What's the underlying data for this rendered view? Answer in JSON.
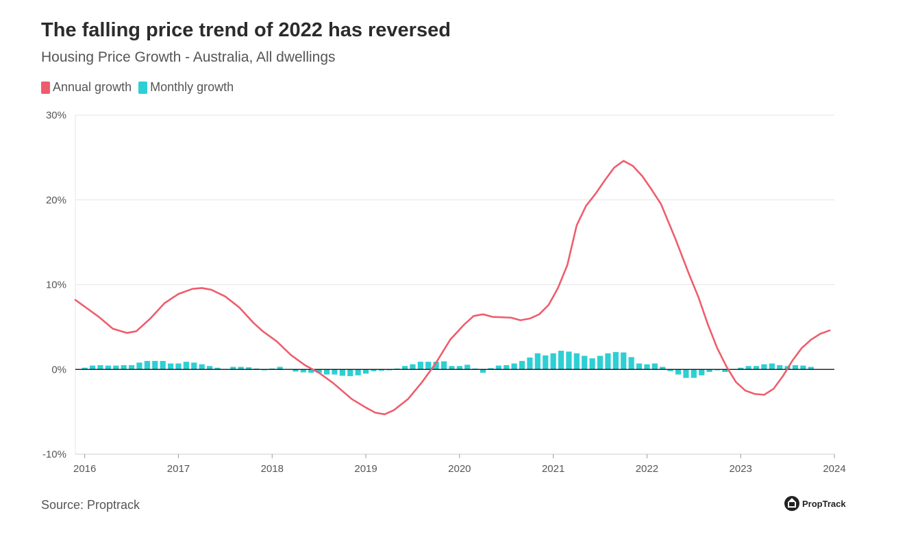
{
  "header": {
    "title": "The falling price trend of 2022 has reversed",
    "subtitle": "Housing Price Growth - Australia, All dwellings"
  },
  "footer": {
    "source": "Source: Proptrack",
    "brand": "PropTrack"
  },
  "colors": {
    "annual": "#ee5d6c",
    "monthly": "#2ecfd4",
    "grid": "#e6e6e6",
    "zero_line": "#000000"
  },
  "chart_data": {
    "type": "line",
    "legend_position": "top-left",
    "grid": true,
    "ylim": [
      -10,
      30
    ],
    "xlim": [
      2015.9,
      2024.0
    ],
    "y_ticks": [
      {
        "value": 30,
        "label": "30%"
      },
      {
        "value": 20,
        "label": "20%"
      },
      {
        "value": 10,
        "label": "10%"
      },
      {
        "value": 0,
        "label": "0%"
      },
      {
        "value": -10,
        "label": "-10%"
      }
    ],
    "x_ticks": [
      {
        "value": 2016,
        "label": "2016"
      },
      {
        "value": 2017,
        "label": "2017"
      },
      {
        "value": 2018,
        "label": "2018"
      },
      {
        "value": 2019,
        "label": "2019"
      },
      {
        "value": 2020,
        "label": "2020"
      },
      {
        "value": 2021,
        "label": "2021"
      },
      {
        "value": 2022,
        "label": "2022"
      },
      {
        "value": 2023,
        "label": "2023"
      },
      {
        "value": 2024,
        "label": "2024"
      }
    ],
    "series": [
      {
        "name": "Annual growth",
        "kind": "line",
        "points": [
          [
            2015.9,
            8.2
          ],
          [
            2016.0,
            7.4
          ],
          [
            2016.15,
            6.2
          ],
          [
            2016.3,
            4.8
          ],
          [
            2016.45,
            4.3
          ],
          [
            2016.55,
            4.5
          ],
          [
            2016.7,
            6.0
          ],
          [
            2016.85,
            7.8
          ],
          [
            2017.0,
            8.9
          ],
          [
            2017.15,
            9.5
          ],
          [
            2017.25,
            9.6
          ],
          [
            2017.35,
            9.4
          ],
          [
            2017.5,
            8.6
          ],
          [
            2017.65,
            7.3
          ],
          [
            2017.8,
            5.5
          ],
          [
            2017.9,
            4.5
          ],
          [
            2018.05,
            3.3
          ],
          [
            2018.2,
            1.7
          ],
          [
            2018.35,
            0.5
          ],
          [
            2018.5,
            -0.4
          ],
          [
            2018.65,
            -1.6
          ],
          [
            2018.85,
            -3.5
          ],
          [
            2019.0,
            -4.5
          ],
          [
            2019.1,
            -5.1
          ],
          [
            2019.2,
            -5.3
          ],
          [
            2019.3,
            -4.8
          ],
          [
            2019.45,
            -3.5
          ],
          [
            2019.6,
            -1.5
          ],
          [
            2019.75,
            0.8
          ],
          [
            2019.9,
            3.5
          ],
          [
            2020.05,
            5.3
          ],
          [
            2020.15,
            6.3
          ],
          [
            2020.25,
            6.5
          ],
          [
            2020.35,
            6.2
          ],
          [
            2020.55,
            6.1
          ],
          [
            2020.65,
            5.8
          ],
          [
            2020.75,
            6.0
          ],
          [
            2020.85,
            6.5
          ],
          [
            2020.95,
            7.6
          ],
          [
            2021.05,
            9.6
          ],
          [
            2021.15,
            12.3
          ],
          [
            2021.25,
            17.0
          ],
          [
            2021.35,
            19.3
          ],
          [
            2021.45,
            20.7
          ],
          [
            2021.55,
            22.3
          ],
          [
            2021.65,
            23.8
          ],
          [
            2021.75,
            24.6
          ],
          [
            2021.85,
            24.0
          ],
          [
            2021.95,
            22.8
          ],
          [
            2022.05,
            21.2
          ],
          [
            2022.15,
            19.5
          ],
          [
            2022.3,
            15.5
          ],
          [
            2022.45,
            11.2
          ],
          [
            2022.55,
            8.5
          ],
          [
            2022.65,
            5.3
          ],
          [
            2022.75,
            2.5
          ],
          [
            2022.85,
            0.3
          ],
          [
            2022.95,
            -1.5
          ],
          [
            2023.05,
            -2.5
          ],
          [
            2023.15,
            -2.9
          ],
          [
            2023.25,
            -3.0
          ],
          [
            2023.35,
            -2.3
          ],
          [
            2023.45,
            -0.8
          ],
          [
            2023.55,
            1.0
          ],
          [
            2023.65,
            2.5
          ],
          [
            2023.75,
            3.5
          ],
          [
            2023.85,
            4.2
          ],
          [
            2023.95,
            4.6
          ]
        ]
      },
      {
        "name": "Monthly growth",
        "kind": "bar",
        "x_start": 2016.0,
        "step": 0.0833333,
        "values": [
          0.2,
          0.45,
          0.5,
          0.45,
          0.45,
          0.5,
          0.5,
          0.8,
          1.0,
          1.0,
          1.0,
          0.7,
          0.7,
          0.9,
          0.8,
          0.6,
          0.4,
          0.2,
          0.05,
          0.3,
          0.3,
          0.25,
          0.1,
          -0.1,
          0.1,
          0.3,
          0.05,
          -0.25,
          -0.35,
          -0.4,
          -0.4,
          -0.6,
          -0.6,
          -0.75,
          -0.8,
          -0.7,
          -0.5,
          -0.2,
          -0.15,
          -0.1,
          0.1,
          0.4,
          0.6,
          0.9,
          0.9,
          0.9,
          0.95,
          0.4,
          0.4,
          0.55,
          0.1,
          -0.4,
          0.15,
          0.45,
          0.5,
          0.7,
          1.0,
          1.4,
          1.9,
          1.65,
          1.9,
          2.2,
          2.1,
          1.9,
          1.6,
          1.3,
          1.6,
          1.9,
          2.05,
          2.0,
          1.45,
          0.7,
          0.6,
          0.7,
          0.3,
          -0.2,
          -0.6,
          -1.0,
          -1.0,
          -0.7,
          -0.3,
          -0.1,
          -0.3,
          -0.05,
          0.2,
          0.4,
          0.4,
          0.6,
          0.7,
          0.5,
          0.4,
          0.5,
          0.45,
          0.3
        ]
      }
    ]
  }
}
